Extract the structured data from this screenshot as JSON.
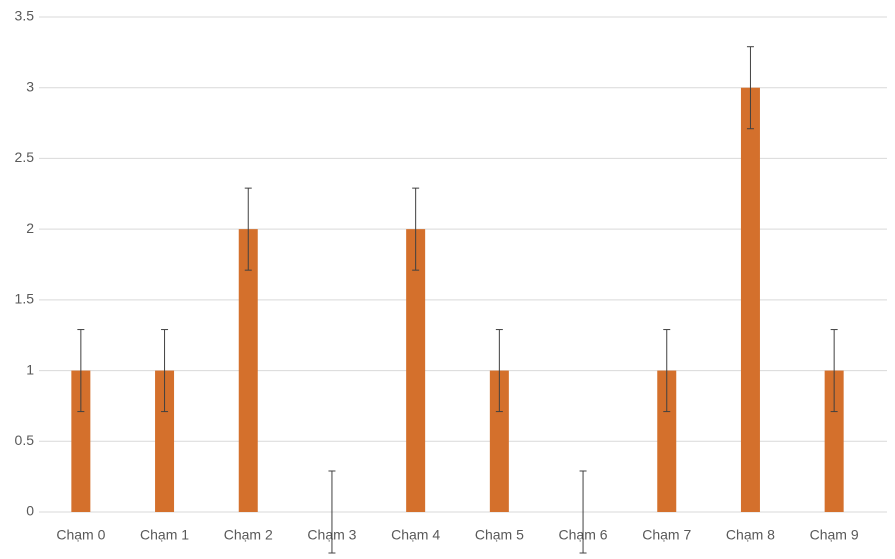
{
  "chart_data": {
    "type": "bar",
    "categories": [
      "Chạm 0",
      "Chạm 1",
      "Chạm 2",
      "Chạm 3",
      "Chạm 4",
      "Chạm 5",
      "Chạm 6",
      "Chạm 7",
      "Chạm 8",
      "Chạm 9"
    ],
    "values": [
      1,
      1,
      2,
      0,
      2,
      1,
      0,
      1,
      3,
      1
    ],
    "errors": [
      0.29,
      0.29,
      0.29,
      0.29,
      0.29,
      0.29,
      0.29,
      0.29,
      0.29,
      0.29
    ],
    "color": "#d4702c",
    "ylim": [
      0,
      3.5
    ],
    "yticks": [
      0,
      0.5,
      1,
      1.5,
      2,
      2.5,
      3,
      3.5
    ],
    "grid": true
  }
}
